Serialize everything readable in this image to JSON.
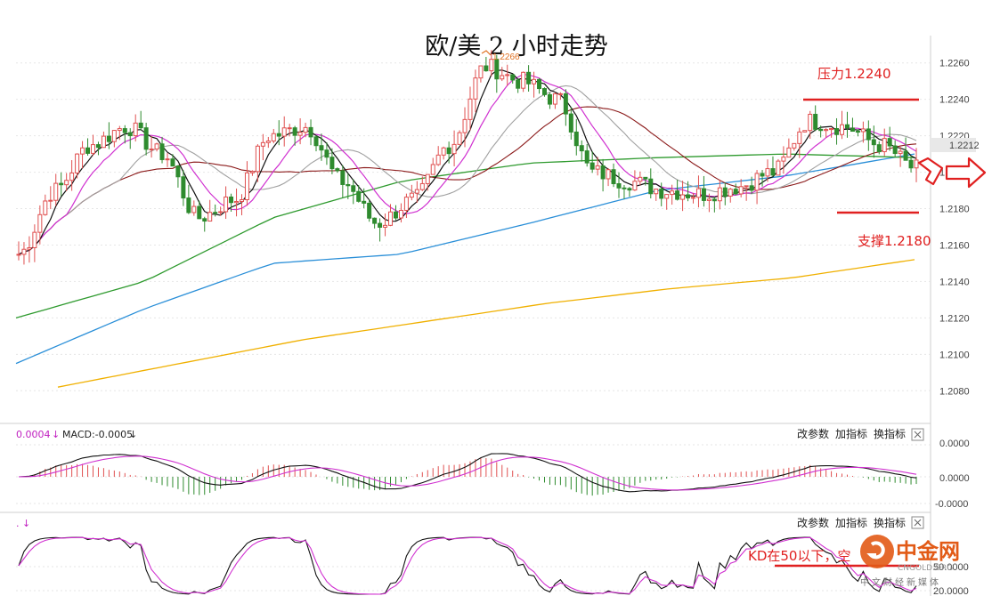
{
  "title": "欧/美 2 小时走势",
  "main_axis": {
    "ticks": [
      "1.2260",
      "1.2240",
      "1.2220",
      "1.2200",
      "1.2180",
      "1.2160",
      "1.2140",
      "1.2120",
      "1.2100",
      "1.2080"
    ],
    "current_price": "1.2212",
    "ylim": [
      1.2065,
      1.2275
    ]
  },
  "annotations": {
    "resistance": "压力1.2240",
    "support": "支撑1.2180",
    "high_marker": "1.2266",
    "kd_note": "KD在50以下，空"
  },
  "macd_panel": {
    "header_left": "0.0004",
    "header_macd": "MACD:-0.0005",
    "ticks": [
      "0.0000",
      "0.0000",
      "-0.0000"
    ],
    "controls": [
      "改参数",
      "加指标",
      "换指标"
    ]
  },
  "kd_panel": {
    "ticks": [
      "50.0000",
      "20.0000"
    ],
    "controls": [
      "改参数",
      "加指标",
      "换指标"
    ]
  },
  "watermark": {
    "name": "中金网",
    "sub": "CNGOLD.ORG",
    "tagline": "中文财经新媒体"
  },
  "chart_data": {
    "type": "line",
    "description_series": [
      {
        "name": "",
        "note": "price candles approx",
        "values": [
          1.2155,
          1.219,
          1.2215,
          1.2225,
          1.221,
          1.2175,
          1.2185,
          1.222,
          1.2225,
          1.2195,
          1.2172,
          1.2185,
          1.2215,
          1.2258,
          1.225,
          1.224,
          1.22,
          1.2195,
          1.219,
          1.2188,
          1.2192,
          1.22,
          1.2228,
          1.2225,
          1.2215,
          1.2202
        ]
      }
    ],
    "ma_yellow": [
      1.2082,
      1.2095,
      1.2108,
      1.2118,
      1.2128,
      1.2136,
      1.2142,
      1.2152
    ],
    "ma_blue": [
      1.2095,
      1.2125,
      1.215,
      1.2155,
      1.2172,
      1.219,
      1.2198,
      1.221
    ],
    "ma_green": [
      1.212,
      1.214,
      1.2175,
      1.2195,
      1.2205,
      1.2208,
      1.221,
      1.2208
    ],
    "colors": {
      "up": "#e05050",
      "down": "#2e8b2e",
      "yellow": "#f0b000",
      "blue": "#2a8fd8",
      "green": "#2e9a2e",
      "magenta": "#d030d0",
      "black": "#111111",
      "brown": "#8b1a1a",
      "gray": "#a0a0a0",
      "red": "#e02020"
    }
  }
}
